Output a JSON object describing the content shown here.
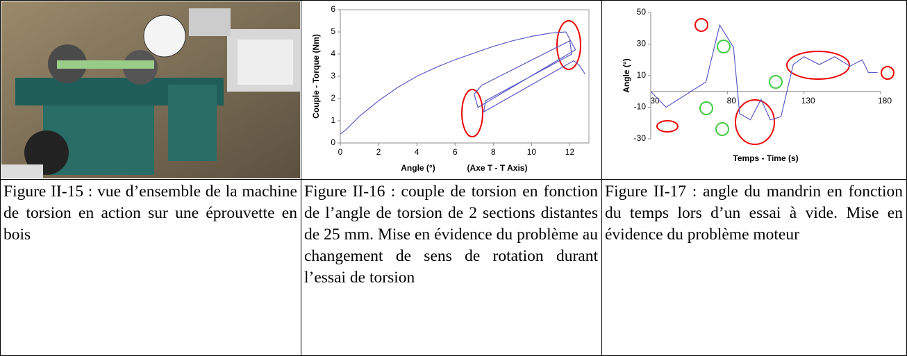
{
  "captions": [
    "Figure II-15 : vue d’ensemble de la machine de torsion en action sur une éprouvette en bois",
    "Figure II-16 : couple de torsion en fonction de l’angle de torsion de 2 sections distantes de 25 mm. Mise en évidence du problème au changement de sens de rotation durant l’essai de torsion",
    "Figure II-17 : angle du mandrin en fonction du temps lors d’un essai à vide. Mise en évidence du problème moteur"
  ],
  "chart_data": [
    {
      "type": "line",
      "xlabel": "Angle (°)",
      "xlabel_note": "(Axe T - T Axis)",
      "ylabel": "Couple - Torque (Nm)",
      "x": [
        0,
        0.3,
        1,
        2,
        3,
        4,
        5,
        6,
        7,
        8,
        9,
        10,
        11,
        11.8,
        12.1,
        12.3,
        7.2,
        7.0,
        7.4,
        12.0,
        12.1,
        7.6,
        7.5,
        12.2,
        12.5,
        12.8
      ],
      "series": [
        {
          "name": "Couple",
          "color": "#5a5ac8",
          "values": [
            0.4,
            0.6,
            1.2,
            1.9,
            2.5,
            3.0,
            3.4,
            3.75,
            4.05,
            4.35,
            4.6,
            4.8,
            4.95,
            5.0,
            4.5,
            4.2,
            1.6,
            2.2,
            2.6,
            4.6,
            4.0,
            1.9,
            1.4,
            3.7,
            3.5,
            3.1
          ]
        }
      ],
      "xlim": [
        0,
        13
      ],
      "xticks": [
        0,
        2,
        4,
        6,
        8,
        10,
        12
      ],
      "ylim": [
        0,
        6
      ],
      "yticks": [
        0,
        1,
        2,
        3,
        4,
        5,
        6
      ],
      "frame": true
    },
    {
      "type": "line",
      "xlabel": "Temps - Time (s)",
      "ylabel": "Angle (°)",
      "x": [
        30,
        40,
        66,
        75,
        84,
        88,
        95,
        102,
        108,
        115,
        123,
        130,
        140,
        150,
        160,
        168,
        172,
        178
      ],
      "series": [
        {
          "name": "Angle",
          "color": "#5a5ac8",
          "values": [
            0,
            -10,
            6,
            42,
            28,
            -14,
            -18,
            -5,
            -18,
            -16,
            17,
            22,
            17,
            22,
            16,
            20,
            12,
            12
          ]
        }
      ],
      "xlim": [
        30,
        180
      ],
      "xticks": [
        30,
        80,
        130,
        180
      ],
      "ylim": [
        -30,
        50
      ],
      "yticks": [
        -30,
        -10,
        10,
        30,
        50
      ],
      "frame": false
    }
  ]
}
